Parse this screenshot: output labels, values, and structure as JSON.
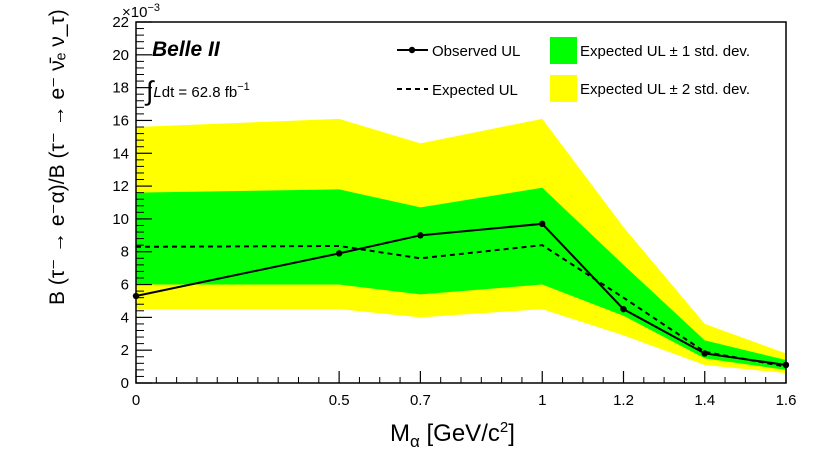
{
  "chart_data": {
    "type": "line",
    "xlabel_main": "M",
    "xlabel_sub": "α",
    "xlabel_rest": " [GeV/c",
    "xlabel_sup": "2",
    "xlabel_close": "]",
    "ylabel": "B (τ⁻ → e⁻α)/B (τ⁻ → e⁻ ν̄ₑ ν_τ)",
    "y_exponent": "×10",
    "y_exponent_power": "−3",
    "xlim": [
      0,
      1.6
    ],
    "ylim": [
      0,
      22
    ],
    "x_ticks": [
      0,
      0.5,
      0.7,
      1,
      1.2,
      1.4,
      1.6
    ],
    "x_tick_labels": [
      "0",
      "0.5",
      "0.7",
      "1",
      "1.2",
      "1.4",
      "1.6"
    ],
    "y_ticks": [
      0,
      2,
      4,
      6,
      8,
      10,
      12,
      14,
      16,
      18,
      20,
      22
    ],
    "y_tick_labels": [
      "0",
      "2",
      "4",
      "6",
      "8",
      "10",
      "12",
      "14",
      "16",
      "18",
      "20",
      "22"
    ],
    "x": [
      0,
      0.5,
      0.7,
      1.0,
      1.2,
      1.4,
      1.6
    ],
    "series": [
      {
        "name": "Observed UL",
        "style": "solid-markers",
        "values": [
          5.3,
          7.9,
          9.0,
          9.7,
          4.5,
          1.8,
          1.1
        ]
      },
      {
        "name": "Expected UL",
        "style": "dashed",
        "values": [
          8.3,
          8.35,
          7.6,
          8.4,
          5.2,
          1.9,
          1.0
        ]
      }
    ],
    "bands": [
      {
        "name": "Expected UL ± 2 std. dev.",
        "color": "#ffff00",
        "lower": [
          4.5,
          4.5,
          4.0,
          4.5,
          2.9,
          1.1,
          0.6
        ],
        "upper": [
          15.6,
          16.1,
          14.6,
          16.1,
          9.5,
          3.6,
          1.8
        ]
      },
      {
        "name": "Expected UL ± 1 std. dev.",
        "color": "#00ff00",
        "lower": [
          6.0,
          6.0,
          5.4,
          6.0,
          4.1,
          1.5,
          0.8
        ],
        "upper": [
          11.6,
          11.8,
          10.7,
          11.9,
          7.2,
          2.6,
          1.4
        ]
      }
    ],
    "annotations": {
      "experiment": "Belle II",
      "lumi_integral": "∫",
      "lumi_L": "L",
      "lumi_rest": "dt = 62.8 fb",
      "lumi_sup": "−1"
    },
    "legend": {
      "placement": "top-right",
      "entries": [
        "Observed UL",
        "Expected UL ± 1 std. dev.",
        "Expected UL",
        "Expected UL ± 2 std. dev."
      ]
    },
    "grid": false
  }
}
